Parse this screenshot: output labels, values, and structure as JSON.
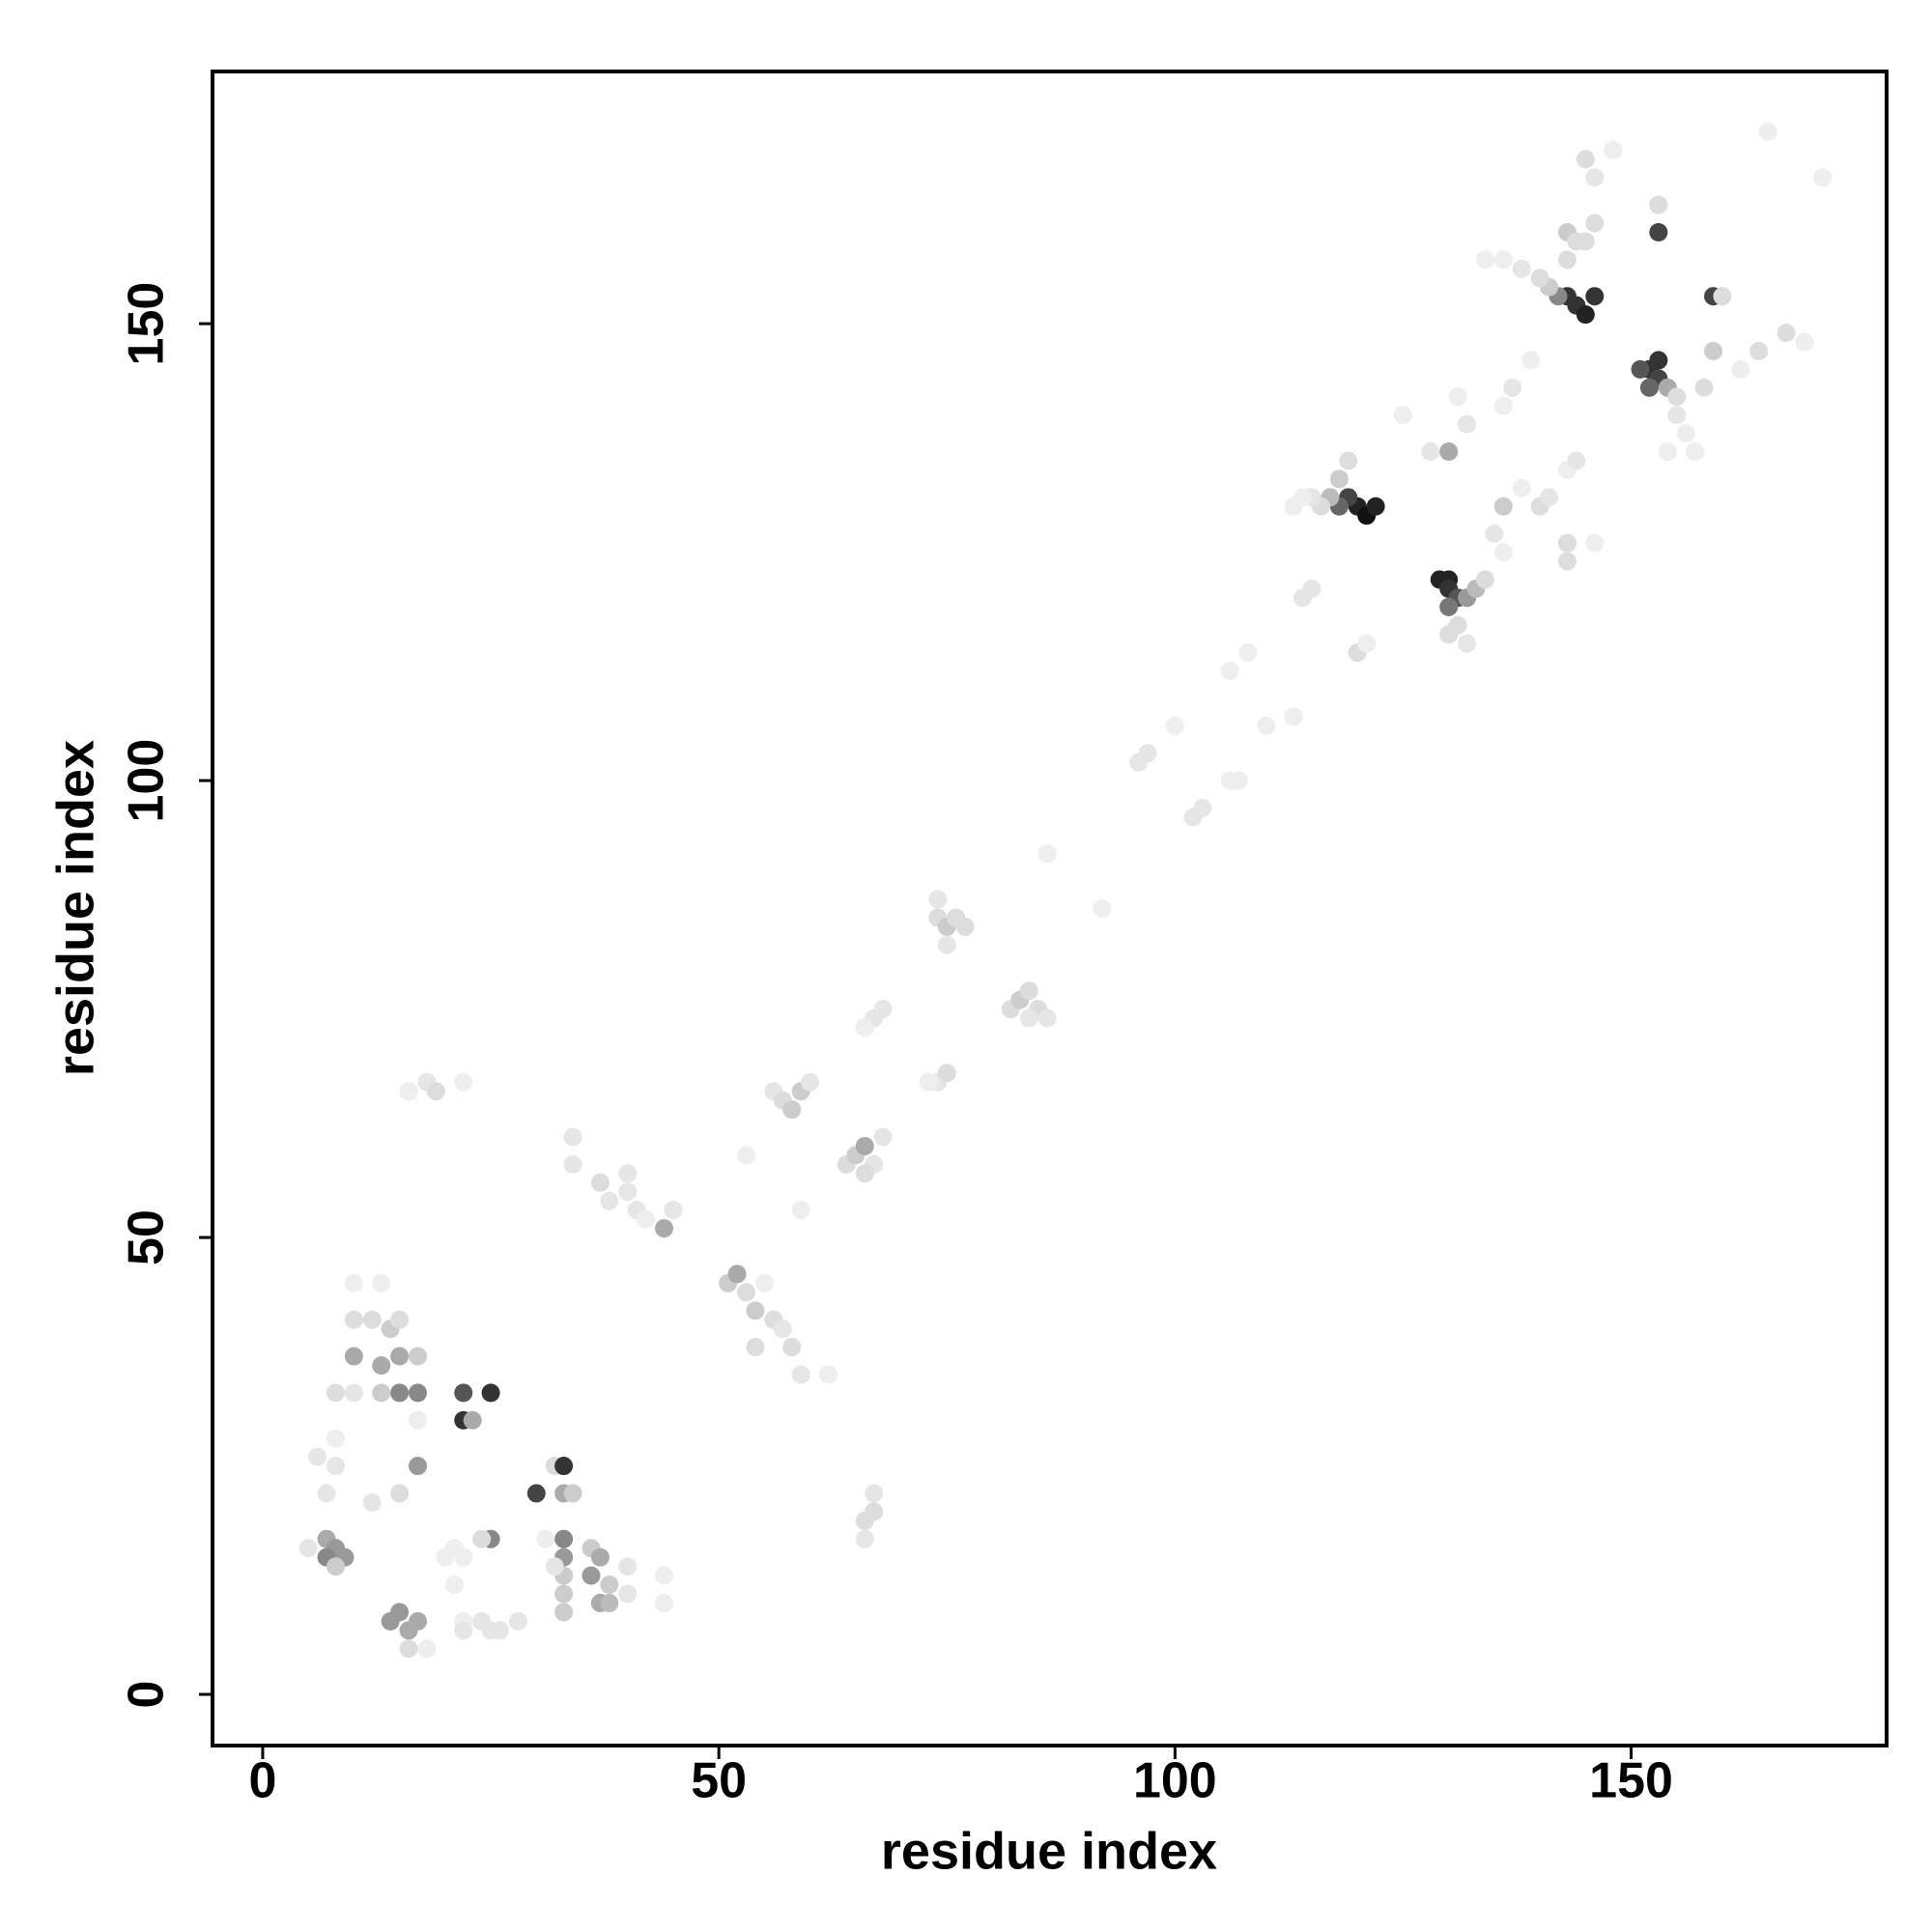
{
  "chart_data": {
    "type": "scatter",
    "xlabel": "residue index",
    "ylabel": "residue index",
    "xlim": [
      -5.5,
      178
    ],
    "ylim": [
      -5.6,
      177.6
    ],
    "xticks": [
      0,
      50,
      100,
      150
    ],
    "yticks": [
      0,
      50,
      100,
      150
    ],
    "x": [
      120,
      121,
      122,
      119,
      118,
      117,
      116,
      115,
      114,
      113,
      118,
      119,
      129,
      130,
      130,
      131,
      130,
      132,
      133,
      131,
      132,
      130,
      134,
      143,
      144,
      145,
      146,
      142,
      141,
      140,
      138,
      136,
      134,
      143,
      143,
      152,
      153,
      153,
      152,
      151,
      154,
      155,
      155,
      156,
      157,
      154,
      158,
      159,
      160,
      153,
      153,
      146,
      145,
      148,
      165,
      171,
      159,
      164,
      167,
      169,
      162,
      145,
      146,
      144,
      128,
      130,
      131,
      125,
      132,
      136,
      137,
      139,
      136,
      135,
      136,
      140,
      141,
      143,
      144,
      143,
      143,
      146,
      138,
      115,
      114,
      120,
      121,
      106,
      108,
      110,
      113,
      100,
      96,
      97,
      102,
      103,
      106,
      107,
      86,
      92,
      74,
      75,
      76,
      77,
      75,
      74,
      82,
      83,
      84,
      85,
      86,
      84,
      67,
      68,
      66,
      74,
      75,
      73,
      56,
      57,
      58,
      59,
      60,
      64,
      65,
      66,
      67,
      66,
      68,
      59,
      53,
      34,
      34,
      37,
      38,
      40,
      41,
      42,
      44,
      45,
      40,
      18,
      19,
      22,
      16,
      51,
      52,
      53,
      54,
      56,
      57,
      58,
      59,
      62,
      54,
      55,
      66,
      67,
      66,
      67,
      10,
      13,
      10,
      12,
      14,
      15,
      10,
      13,
      15,
      17,
      8,
      10,
      13,
      15,
      17,
      17,
      22,
      25,
      22,
      23,
      8,
      6,
      8,
      7,
      17,
      15,
      12,
      30,
      32,
      33,
      33,
      34,
      5,
      7,
      8,
      7,
      9,
      8,
      25,
      24,
      22,
      21,
      33,
      33,
      33,
      33,
      33,
      36,
      36,
      37,
      38,
      37,
      38,
      40,
      40,
      44,
      44,
      32,
      31,
      14,
      15,
      16,
      17,
      16,
      18,
      22,
      22,
      24,
      25,
      26,
      28,
      20,
      21
    ],
    "y": [
      130,
      129,
      130,
      131,
      130,
      131,
      130,
      131,
      131,
      130,
      133,
      135,
      122,
      122,
      121,
      120,
      119,
      120,
      121,
      117,
      115,
      116,
      122,
      153,
      152,
      151,
      153,
      153,
      154,
      155,
      156,
      157,
      157,
      157,
      160,
      145,
      146,
      144,
      143,
      145,
      143,
      142,
      140,
      138,
      136,
      136,
      143,
      153,
      153,
      160,
      163,
      166,
      168,
      169,
      171,
      166,
      147,
      147,
      149,
      148,
      145,
      159,
      161,
      159,
      136,
      136,
      142,
      140,
      139,
      141,
      143,
      146,
      130,
      127,
      125,
      130,
      131,
      134,
      135,
      126,
      124,
      126,
      132,
      121,
      120,
      114,
      115,
      112,
      114,
      106,
      107,
      106,
      102,
      103,
      96,
      97,
      100,
      100,
      92,
      86,
      85,
      84,
      85,
      84,
      82,
      87,
      75,
      76,
      77,
      75,
      74,
      74,
      74,
      75,
      73,
      67,
      68,
      67,
      66,
      65,
      64,
      66,
      67,
      58,
      59,
      60,
      58,
      57,
      61,
      53,
      59,
      61,
      58,
      56,
      54,
      55,
      53,
      52,
      51,
      53,
      57,
      67,
      66,
      67,
      66,
      45,
      46,
      44,
      42,
      41,
      40,
      38,
      35,
      35,
      38,
      45,
      19,
      20,
      17,
      22,
      45,
      45,
      41,
      41,
      40,
      41,
      37,
      36,
      37,
      37,
      33,
      33,
      33,
      33,
      33,
      30,
      33,
      33,
      30,
      30,
      28,
      26,
      25,
      22,
      25,
      22,
      21,
      22,
      25,
      25,
      22,
      22,
      16,
      17,
      16,
      15,
      15,
      14,
      17,
      17,
      15,
      12,
      17,
      15,
      13,
      11,
      9,
      16,
      13,
      15,
      12,
      10,
      10,
      14,
      11,
      13,
      10,
      14,
      17,
      8,
      9,
      7,
      8,
      5,
      5,
      8,
      7,
      8,
      7,
      7,
      8,
      15,
      16
    ],
    "colors": [
      "#222",
      "#111",
      "#222",
      "#444",
      "#666",
      "#bbb",
      "#ddd",
      "#e6e6e6",
      "#eee",
      "#eee",
      "#ccc",
      "#ddd",
      "#222",
      "#222",
      "#333",
      "#555",
      "#777",
      "#999",
      "#bbb",
      "#ddd",
      "#e6e6e6",
      "#ddd",
      "#ddd",
      "#333",
      "#333",
      "#222",
      "#333",
      "#888",
      "#ccc",
      "#ddd",
      "#e6e6e6",
      "#eee",
      "#eee",
      "#ddd",
      "#ccc",
      "#333",
      "#333",
      "#444",
      "#666",
      "#555",
      "#aaa",
      "#ddd",
      "#e6e6e6",
      "#eee",
      "#eee",
      "#eee",
      "#ddd",
      "#444",
      "#ddd",
      "#444",
      "#ddd",
      "#e6e6e6",
      "#ddd",
      "#eee",
      "#eee",
      "#eee",
      "#ccc",
      "#ddd",
      "#ddd",
      "#eee",
      "#eee",
      "#ddd",
      "#ddd",
      "#ddd",
      "#e6e6e6",
      "#aaa",
      "#eee",
      "#eee",
      "#e6e6e6",
      "#eee",
      "#e6e6e6",
      "#eee",
      "#ccc",
      "#e6e6e6",
      "#eee",
      "#ddd",
      "#e6e6e6",
      "#eee",
      "#e6e6e6",
      "#ddd",
      "#ddd",
      "#eee",
      "#eee",
      "#e6e6e6",
      "#e6e6e6",
      "#ddd",
      "#eee",
      "#eee",
      "#eee",
      "#eee",
      "#eee",
      "#eee",
      "#e6e6e6",
      "#e6e6e6",
      "#e6e6e6",
      "#e6e6e6",
      "#eee",
      "#eee",
      "#eee",
      "#eee",
      "#ddd",
      "#ccc",
      "#ddd",
      "#ddd",
      "#e6e6e6",
      "#e6e6e6",
      "#ddd",
      "#ccc",
      "#ddd",
      "#ddd",
      "#e6e6e6",
      "#e6e6e6",
      "#e6e6e6",
      "#e6e6e6",
      "#eee",
      "#e6e6e6",
      "#ddd",
      "#eee",
      "#e6e6e6",
      "#ddd",
      "#ccc",
      "#ccc",
      "#e6e6e6",
      "#ddd",
      "#ccc",
      "#aaa",
      "#e6e6e6",
      "#ddd",
      "#e6e6e6",
      "#eee",
      "#eee",
      "#e6e6e6",
      "#e6e6e6",
      "#ddd",
      "#e6e6e6",
      "#e6e6e6",
      "#e6e6e6",
      "#eee",
      "#aaa",
      "#e6e6e6",
      "#e6e6e6",
      "#e6e6e6",
      "#ddd",
      "#eee",
      "#eee",
      "#ccc",
      "#aaa",
      "#ddd",
      "#ccc",
      "#ddd",
      "#e6e6e6",
      "#ddd",
      "#e6e6e6",
      "#eee",
      "#ddd",
      "#eee",
      "#ddd",
      "#ddd",
      "#e6e6e6",
      "#e6e6e6",
      "#eee",
      "#eee",
      "#ddd",
      "#ddd",
      "#ccc",
      "#ddd",
      "#aaa",
      "#aaa",
      "#aaa",
      "#ccc",
      "#ddd",
      "#e6e6e6",
      "#ccc",
      "#888",
      "#888",
      "#eee",
      "#555",
      "#333",
      "#333",
      "#aaa",
      "#eee",
      "#e6e6e6",
      "#e6e6e6",
      "#e6e6e6",
      "#999",
      "#ddd",
      "#e6e6e6",
      "#444",
      "#ddd",
      "#333",
      "#aaa",
      "#ccc",
      "#e6e6e6",
      "#aaa",
      "#999",
      "#888",
      "#999",
      "#ccc",
      "#888",
      "#ddd",
      "#eee",
      "#eee",
      "#888",
      "#999",
      "#ccc",
      "#ccc",
      "#ccc",
      "#ccc",
      "#999",
      "#aaa",
      "#ccc",
      "#aaa",
      "#bbb",
      "#e6e6e6",
      "#e6e6e6",
      "#eee",
      "#eee",
      "#e6e6e6",
      "#eee",
      "#999",
      "#999",
      "#aaa",
      "#aaa",
      "#ddd",
      "#eee",
      "#eee",
      "#e6e6e6",
      "#e6e6e6",
      "#e6e6e6",
      "#e6e6e6",
      "#e6e6e6",
      "#eee",
      "#eee"
    ]
  }
}
